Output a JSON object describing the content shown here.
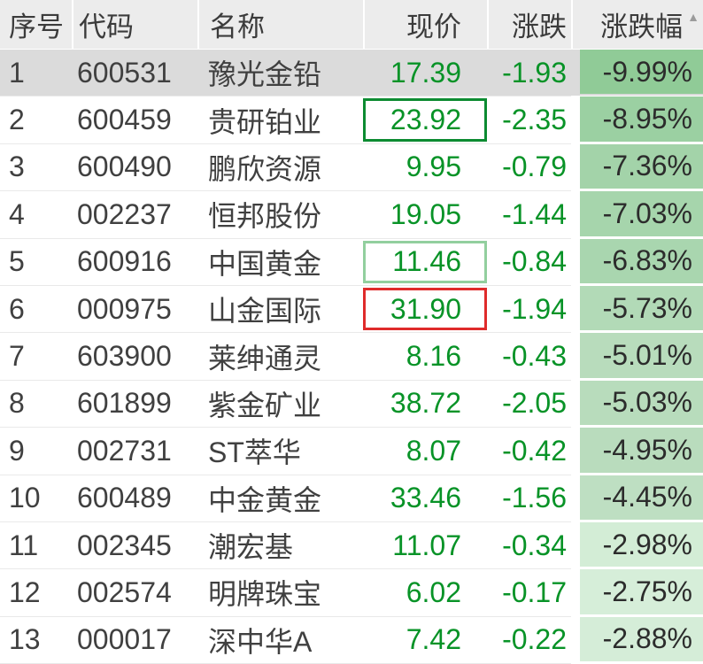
{
  "table": {
    "columns": [
      {
        "key": "index",
        "label": "序号"
      },
      {
        "key": "code",
        "label": "代码"
      },
      {
        "key": "name",
        "label": "名称"
      },
      {
        "key": "price",
        "label": "现价"
      },
      {
        "key": "change",
        "label": "涨跌"
      },
      {
        "key": "pct",
        "label": "涨跌幅",
        "sort_indicator": "asc"
      }
    ],
    "sort_icon": "▲",
    "colors": {
      "header_bg": "#ececec",
      "selected_row_bg": "#dbdbdb",
      "number_green": "#089327",
      "header_text": "#3b3b3b",
      "body_text": "#404040",
      "pct_text": "#2c2c2c",
      "sort_icon_color": "#9b9b9b",
      "price_box_dark_green": "#0c8b31",
      "price_box_light_green": "#92cf9e",
      "price_box_red": "#df2b2b"
    },
    "rows": [
      {
        "index": "1",
        "code": "600531",
        "name": "豫光金铅",
        "price": "17.39",
        "change": "-1.93",
        "pct": "-9.99%",
        "pct_bg": "#90cb97",
        "selected": true,
        "price_box": null
      },
      {
        "index": "2",
        "code": "600459",
        "name": "贵研铂业",
        "price": "23.92",
        "change": "-2.35",
        "pct": "-8.95%",
        "pct_bg": "#9bd0a2",
        "selected": false,
        "price_box": "#0c8b31"
      },
      {
        "index": "3",
        "code": "600490",
        "name": "鹏欣资源",
        "price": "9.95",
        "change": "-0.79",
        "pct": "-7.36%",
        "pct_bg": "#a3d3a9",
        "selected": false,
        "price_box": null
      },
      {
        "index": "4",
        "code": "002237",
        "name": "恒邦股份",
        "price": "19.05",
        "change": "-1.44",
        "pct": "-7.03%",
        "pct_bg": "#a6d5ac",
        "selected": false,
        "price_box": null
      },
      {
        "index": "5",
        "code": "600916",
        "name": "中国黄金",
        "price": "11.46",
        "change": "-0.84",
        "pct": "-6.83%",
        "pct_bg": "#a9d6af",
        "selected": false,
        "price_box": "#92cf9e"
      },
      {
        "index": "6",
        "code": "000975",
        "name": "山金国际",
        "price": "31.90",
        "change": "-1.94",
        "pct": "-5.73%",
        "pct_bg": "#b2dab7",
        "selected": false,
        "price_box": "#df2b2b"
      },
      {
        "index": "7",
        "code": "603900",
        "name": "莱绅通灵",
        "price": "8.16",
        "change": "-0.43",
        "pct": "-5.01%",
        "pct_bg": "#b8dcbc",
        "selected": false,
        "price_box": null
      },
      {
        "index": "8",
        "code": "601899",
        "name": "紫金矿业",
        "price": "38.72",
        "change": "-2.05",
        "pct": "-5.03%",
        "pct_bg": "#b8dcbc",
        "selected": false,
        "price_box": null
      },
      {
        "index": "9",
        "code": "002731",
        "name": "ST萃华",
        "price": "8.07",
        "change": "-0.42",
        "pct": "-4.95%",
        "pct_bg": "#b9dcbd",
        "selected": false,
        "price_box": null
      },
      {
        "index": "10",
        "code": "600489",
        "name": "中金黄金",
        "price": "33.46",
        "change": "-1.56",
        "pct": "-4.45%",
        "pct_bg": "#bedfc2",
        "selected": false,
        "price_box": null
      },
      {
        "index": "11",
        "code": "002345",
        "name": "潮宏基",
        "price": "11.07",
        "change": "-0.34",
        "pct": "-2.98%",
        "pct_bg": "#d3edd6",
        "selected": false,
        "price_box": null
      },
      {
        "index": "12",
        "code": "002574",
        "name": "明牌珠宝",
        "price": "6.02",
        "change": "-0.17",
        "pct": "-2.75%",
        "pct_bg": "#d6eed9",
        "selected": false,
        "price_box": null
      },
      {
        "index": "13",
        "code": "000017",
        "name": "深中华A",
        "price": "7.42",
        "change": "-0.22",
        "pct": "-2.88%",
        "pct_bg": "#d5edd8",
        "selected": false,
        "price_box": null
      }
    ]
  }
}
